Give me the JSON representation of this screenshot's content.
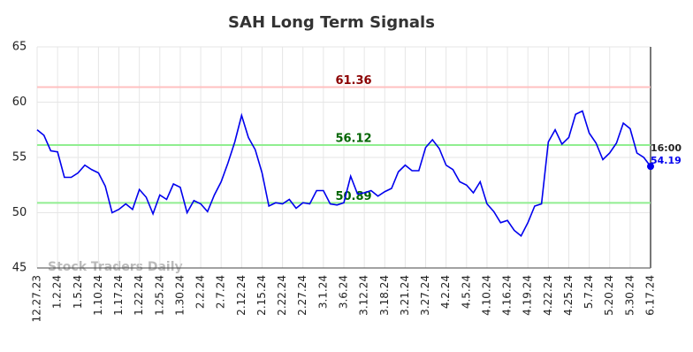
{
  "chart_data": {
    "type": "line",
    "title": "SAH Long Term Signals",
    "watermark": "Stock Traders Daily",
    "annotation": "16:00",
    "categories": [
      "12.27.23",
      null,
      null,
      "1.2.24",
      null,
      null,
      "1.5.24",
      null,
      null,
      "1.10.24",
      null,
      null,
      "1.17.24",
      null,
      null,
      "1.22.24",
      null,
      null,
      "1.25.24",
      null,
      null,
      "1.30.24",
      null,
      null,
      "2.2.24",
      null,
      null,
      "2.7.24",
      null,
      null,
      "2.12.24",
      null,
      null,
      "2.15.24",
      null,
      null,
      "2.22.24",
      null,
      null,
      "2.27.24",
      null,
      null,
      "3.1.24",
      null,
      null,
      "3.6.24",
      null,
      null,
      "3.12.24",
      null,
      null,
      "3.18.24",
      null,
      null,
      "3.21.24",
      null,
      null,
      "3.27.24",
      null,
      null,
      "4.2.24",
      null,
      null,
      "4.5.24",
      null,
      null,
      "4.10.24",
      null,
      null,
      "4.16.24",
      null,
      null,
      "4.19.24",
      null,
      null,
      "4.22.24",
      null,
      null,
      "4.25.24",
      null,
      null,
      "5.7.24",
      null,
      null,
      "5.20.24",
      null,
      null,
      "5.30.24",
      null,
      null,
      "6.17.24"
    ],
    "values": [
      57.5,
      57.0,
      55.6,
      55.5,
      53.2,
      53.2,
      53.6,
      54.3,
      53.9,
      53.6,
      52.4,
      50.0,
      50.3,
      50.8,
      50.3,
      52.1,
      51.4,
      49.9,
      51.6,
      51.2,
      52.6,
      52.3,
      50.0,
      51.1,
      50.8,
      50.1,
      51.6,
      52.8,
      54.5,
      56.4,
      58.8,
      56.8,
      55.7,
      53.6,
      50.6,
      50.9,
      50.8,
      51.2,
      50.4,
      50.9,
      50.8,
      52.0,
      52.0,
      50.8,
      50.7,
      50.9,
      53.3,
      51.7,
      51.8,
      52.0,
      51.5,
      51.9,
      52.2,
      53.7,
      54.3,
      53.8,
      53.8,
      55.9,
      56.6,
      55.8,
      54.3,
      53.9,
      52.8,
      52.5,
      51.8,
      52.8,
      50.8,
      50.1,
      49.1,
      49.3,
      48.4,
      47.9,
      49.1,
      50.6,
      50.8,
      56.4,
      57.5,
      56.2,
      56.8,
      58.9,
      59.2,
      57.2,
      56.3,
      54.8,
      55.4,
      56.3,
      58.1,
      57.6,
      55.4,
      55.0,
      54.19
    ],
    "color": "#0000ee",
    "levels": [
      {
        "value": 61.36,
        "color": "#ffc0c0",
        "label_color": "#8b0000"
      },
      {
        "value": 56.12,
        "color": "#90ee90",
        "label_color": "#006400"
      },
      {
        "value": 50.89,
        "color": "#90ee90",
        "label_color": "#006400"
      }
    ],
    "ylim": [
      45,
      65
    ],
    "yticks": [
      45,
      50,
      55,
      60,
      65
    ],
    "grid": true
  }
}
